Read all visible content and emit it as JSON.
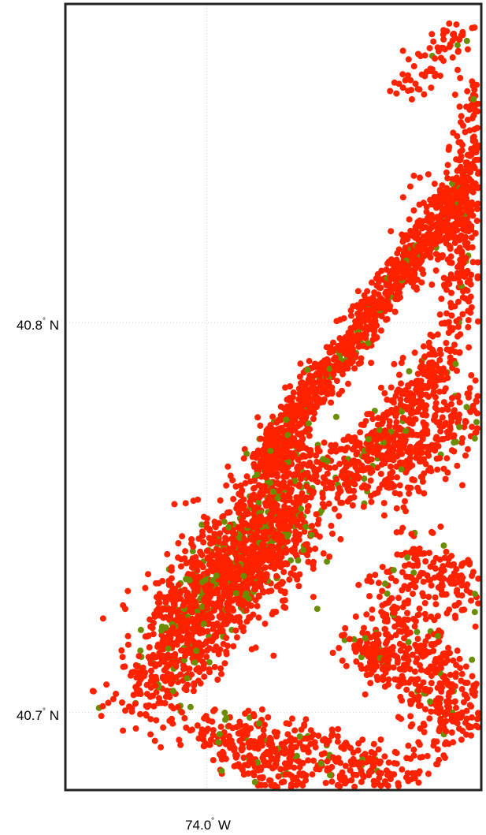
{
  "map": {
    "lat_ticks": [
      {
        "value": 40.8,
        "label": "40.8",
        "hemisphere": "N"
      },
      {
        "value": 40.7,
        "label": "40.7",
        "hemisphere": "N"
      }
    ],
    "lon_ticks": [
      {
        "value": -74.0,
        "label": "74.0",
        "hemisphere": "W"
      }
    ],
    "degree_symbol": "°",
    "extent": {
      "lon_min": -74.0362,
      "lon_max": -73.9295,
      "lat_min": 40.6803,
      "lat_max": 40.8815
    },
    "grid": true,
    "colors": {
      "frame": "#222222",
      "grid": "#cccccc",
      "point_red": "#ff2200",
      "point_green": "#6b8e00"
    },
    "point_clusters": [
      {
        "lon0": -74.0158,
        "lat0": 40.7028,
        "lon1": -73.9725,
        "lat1": 40.7671,
        "spread": 0.006,
        "count": 1100,
        "green": 0.12
      },
      {
        "lon0": -74.005,
        "lat0": 40.725,
        "lon1": -73.979,
        "lat1": 40.75,
        "spread": 0.007,
        "count": 650,
        "green": 0.15
      },
      {
        "lon0": -73.987,
        "lat0": 40.762,
        "lon1": -73.932,
        "lat1": 40.837,
        "spread": 0.0026,
        "count": 1050,
        "green": 0.05
      },
      {
        "lon0": -73.966,
        "lat0": 40.756,
        "lon1": -73.938,
        "lat1": 40.792,
        "spread": 0.0035,
        "count": 400,
        "green": 0.05
      },
      {
        "lon0": -73.944,
        "lat0": 40.813,
        "lon1": -73.935,
        "lat1": 40.835,
        "spread": 0.005,
        "count": 120,
        "green": 0.03
      },
      {
        "lon0": -73.95,
        "lat0": 40.858,
        "lon1": -73.933,
        "lat1": 40.877,
        "spread": 0.0025,
        "count": 70,
        "green": 0.04
      },
      {
        "lon0": -73.936,
        "lat0": 40.798,
        "lon1": -73.93,
        "lat1": 40.861,
        "spread": 0.0028,
        "count": 300,
        "green": 0.04
      },
      {
        "lon0": -73.954,
        "lat0": 40.758,
        "lon1": -73.93,
        "lat1": 40.779,
        "spread": 0.005,
        "count": 260,
        "green": 0.05
      },
      {
        "lon0": -73.95,
        "lat0": 40.74,
        "lon1": -73.93,
        "lat1": 40.73,
        "spread": 0.0045,
        "count": 160,
        "green": 0.04
      },
      {
        "lon0": -73.955,
        "lat0": 40.73,
        "lon1": -73.935,
        "lat1": 40.705,
        "spread": 0.004,
        "count": 200,
        "green": 0.05
      },
      {
        "lon0": -73.945,
        "lat0": 40.705,
        "lon1": -73.93,
        "lat1": 40.695,
        "spread": 0.0045,
        "count": 160,
        "green": 0.05
      },
      {
        "lon0": -73.96,
        "lat0": 40.72,
        "lon1": -73.952,
        "lat1": 40.709,
        "spread": 0.0032,
        "count": 160,
        "green": 0.06
      },
      {
        "lon0": -73.992,
        "lat0": 40.693,
        "lon1": -73.945,
        "lat1": 40.683,
        "spread": 0.0045,
        "count": 300,
        "green": 0.06
      },
      {
        "lon0": -73.999,
        "lat0": 40.696,
        "lon1": -73.978,
        "lat1": 40.682,
        "spread": 0.004,
        "count": 180,
        "green": 0.07
      }
    ]
  }
}
